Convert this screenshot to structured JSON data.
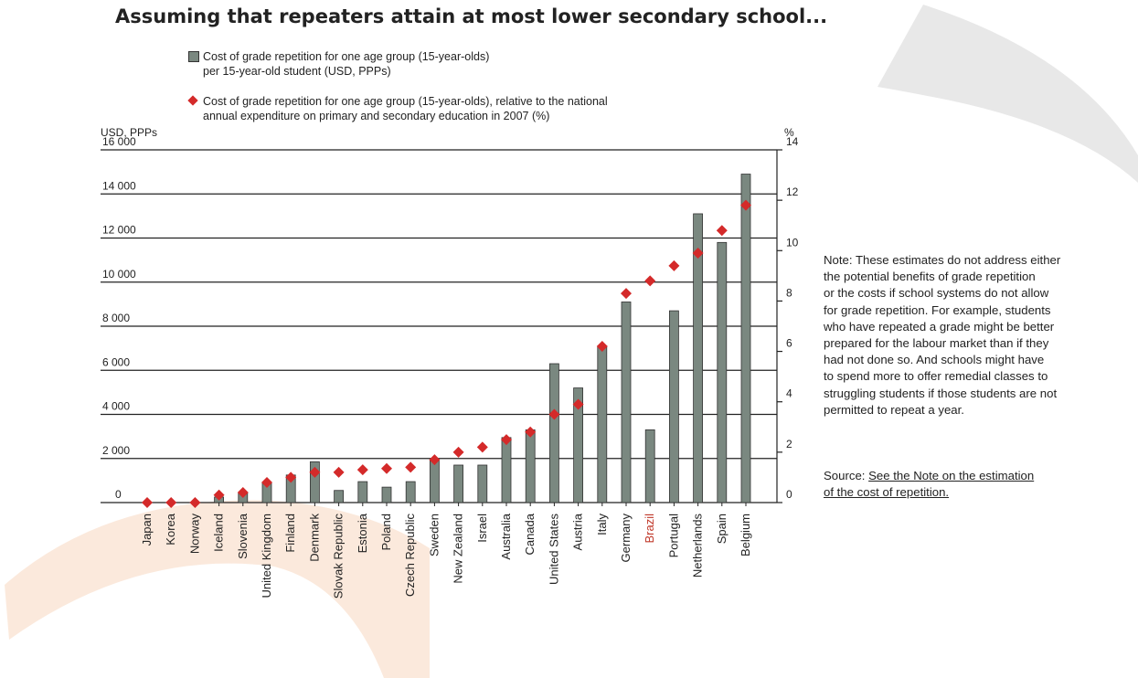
{
  "title": "Assuming that repeaters attain at most lower secondary school...",
  "legend": {
    "bars_line1": "Cost of grade repetition for one age group (15-year-olds)",
    "bars_line2": "per 15-year-old student (USD, PPPs)",
    "markers_line1": "Cost of grade repetition for one age group (15-year-olds), relative to the national",
    "markers_line2": "annual expenditure on primary and secondary education in 2007 (%)"
  },
  "note": {
    "lines": [
      "Note:  These estimates do not address either",
      "the potential benefits of grade repetition",
      "or the costs if school systems do not allow",
      "for grade repetition. For example, students",
      "who have repeated a grade might be better",
      "prepared for the labour market than if they",
      "had not done so. And schools might have",
      "to spend more to offer remedial classes to",
      "struggling students if those students are not",
      "permitted to repeat a year."
    ]
  },
  "source": {
    "label": "Source:",
    "link_line1": "See the Note on the estimation",
    "link_line2": "of the cost of repetition."
  },
  "colors": {
    "bar": "#7a8880",
    "bar_stroke": "#333333",
    "marker": "#d42a2a",
    "highlight_label": "#c0392b",
    "gridline": "#222222"
  },
  "chart_data": {
    "type": "bar",
    "categories": [
      "Japan",
      "Korea",
      "Norway",
      "Iceland",
      "Slovenia",
      "United Kingdom",
      "Finland",
      "Denmark",
      "Slovak Republic",
      "Estonia",
      "Poland",
      "Czech Republic",
      "Sweden",
      "New Zealand",
      "Israel",
      "Australia",
      "Canada",
      "United States",
      "Austria",
      "Italy",
      "Germany",
      "Brazil",
      "Portugal",
      "Netherlands",
      "Spain",
      "Belgium"
    ],
    "highlight_category": "Brazil",
    "series": [
      {
        "name": "Cost of grade repetition for one age group (15-year-olds) per 15-year-old student (USD, PPPs)",
        "axis": "left",
        "kind": "bar",
        "values": [
          0,
          0,
          0,
          250,
          450,
          900,
          1250,
          1850,
          550,
          950,
          700,
          950,
          1950,
          1700,
          1700,
          2950,
          3300,
          6300,
          5200,
          7100,
          9100,
          3300,
          8700,
          13100,
          11800,
          14900
        ]
      },
      {
        "name": "Cost of grade repetition for one age group (15-year-olds), relative to the national annual expenditure on primary and secondary education in 2007 (%)",
        "axis": "right",
        "kind": "marker",
        "values": [
          0,
          0,
          0,
          0.3,
          0.4,
          0.8,
          1.0,
          1.2,
          1.2,
          1.3,
          1.35,
          1.4,
          1.7,
          2.0,
          2.2,
          2.5,
          2.8,
          3.5,
          3.9,
          6.2,
          8.3,
          8.8,
          9.4,
          9.9,
          10.8,
          11.8
        ]
      }
    ],
    "y_left": {
      "label": "USD, PPPs",
      "range": [
        0,
        16000
      ],
      "ticks": [
        0,
        2000,
        4000,
        6000,
        8000,
        10000,
        12000,
        14000,
        16000
      ],
      "tick_labels": [
        "0",
        "2 000",
        "4 000",
        "6 000",
        "8 000",
        "10 000",
        "12 000",
        "14 000",
        "16 000"
      ]
    },
    "y_right": {
      "label": "%",
      "range": [
        0,
        14
      ],
      "ticks": [
        0,
        2,
        4,
        6,
        8,
        10,
        12,
        14
      ],
      "tick_labels": [
        "0",
        "2",
        "4",
        "6",
        "8",
        "10",
        "12",
        "14"
      ]
    },
    "grid": true
  }
}
